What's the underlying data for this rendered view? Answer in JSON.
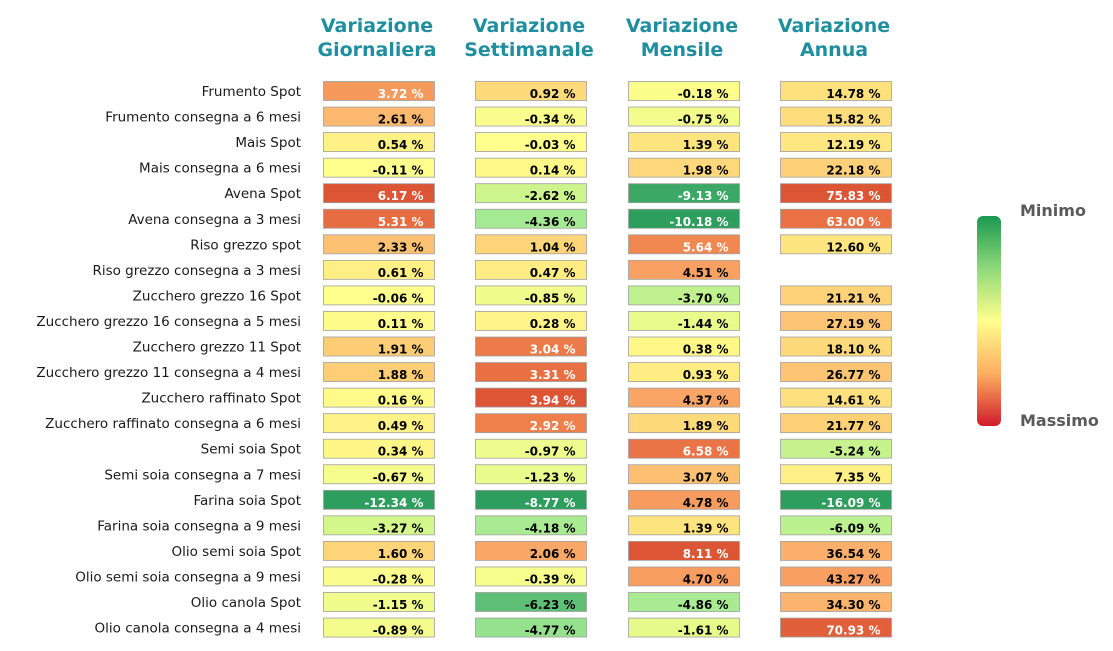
{
  "chart_data": {
    "type": "heatmap",
    "columns": [
      "Variazione Giornaliera",
      "Variazione Settimanale",
      "Variazione Mensile",
      "Variazione Annua"
    ],
    "column_lines": [
      [
        "Variazione",
        "Giornaliera"
      ],
      [
        "Variazione",
        "Settimanale"
      ],
      [
        "Variazione",
        "Mensile"
      ],
      [
        "Variazione",
        "Annua"
      ]
    ],
    "rows": [
      "Frumento Spot",
      "Frumento consegna a 6 mesi",
      "Mais Spot",
      "Mais consegna a 6 mesi",
      "Avena Spot",
      "Avena consegna a 3 mesi",
      "Riso grezzo spot",
      "Riso grezzo consegna a 3 mesi",
      "Zucchero grezzo 16 Spot",
      "Zucchero grezzo 16 consegna a 5 mesi",
      "Zucchero grezzo 11 Spot",
      "Zucchero grezzo 11 consegna a 4 mesi",
      "Zucchero raffinato Spot",
      "Zucchero raffinato consegna a 6 mesi",
      "Semi soia Spot",
      "Semi soia consegna a 7 mesi",
      "Farina soia Spot",
      "Farina soia consegna a 9 mesi",
      "Olio semi soia Spot",
      "Olio semi soia consegna a 9 mesi",
      "Olio canola Spot",
      "Olio canola consegna a 4 mesi"
    ],
    "values": [
      [
        3.72,
        0.92,
        -0.18,
        14.78
      ],
      [
        2.61,
        -0.34,
        -0.75,
        15.82
      ],
      [
        0.54,
        -0.03,
        1.39,
        12.19
      ],
      [
        -0.11,
        0.14,
        1.98,
        22.18
      ],
      [
        6.17,
        -2.62,
        -9.13,
        75.83
      ],
      [
        5.31,
        -4.36,
        -10.18,
        63.0
      ],
      [
        2.33,
        1.04,
        5.64,
        12.6
      ],
      [
        0.61,
        0.47,
        4.51,
        null
      ],
      [
        -0.06,
        -0.85,
        -3.7,
        21.21
      ],
      [
        0.11,
        0.28,
        -1.44,
        27.19
      ],
      [
        1.91,
        3.04,
        0.38,
        18.1
      ],
      [
        1.88,
        3.31,
        0.93,
        26.77
      ],
      [
        0.16,
        3.94,
        4.37,
        14.61
      ],
      [
        0.49,
        2.92,
        1.89,
        21.77
      ],
      [
        0.34,
        -0.97,
        6.58,
        -5.24
      ],
      [
        -0.67,
        -1.23,
        3.07,
        7.35
      ],
      [
        -12.34,
        -8.77,
        4.78,
        -16.09
      ],
      [
        -3.27,
        -4.18,
        1.39,
        -6.09
      ],
      [
        1.6,
        2.06,
        8.11,
        36.54
      ],
      [
        -0.28,
        -0.39,
        4.7,
        43.27
      ],
      [
        -1.15,
        -6.23,
        -4.86,
        34.3
      ],
      [
        -0.89,
        -4.77,
        -1.61,
        70.93
      ]
    ],
    "value_suffix": " %",
    "legend": {
      "min_label": "Minimo",
      "max_label": "Massimo",
      "placement": "right"
    },
    "colors": {
      "scale": [
        "#1a9850",
        "#66bd63",
        "#a6d96a",
        "#d9ef8b",
        "#ffff8c",
        "#fee08b",
        "#fdae61",
        "#f46d43",
        "#d73027",
        "#d01c2a"
      ],
      "header": "#1f8e9e",
      "legend_text": "#5a5a5a"
    }
  }
}
